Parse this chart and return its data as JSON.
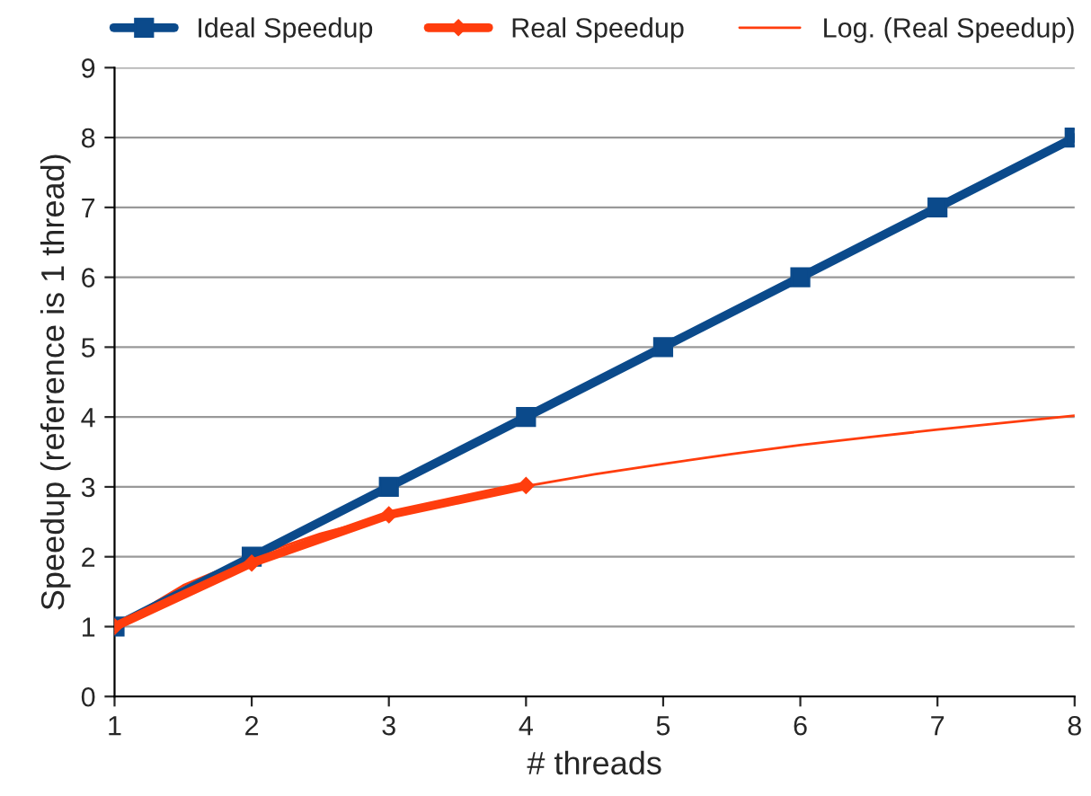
{
  "chart_data": {
    "type": "line",
    "xlabel": "# threads",
    "ylabel": "Speedup (reference is 1 thread)",
    "x": [
      1,
      2,
      3,
      4,
      5,
      6,
      7,
      8
    ],
    "series": [
      {
        "name": "Ideal Speedup",
        "color": "#0b4a8b",
        "values": [
          1,
          2,
          3,
          4,
          5,
          6,
          7,
          8
        ],
        "marker": "square"
      },
      {
        "name": "Real Speedup",
        "color": "#ff3d0d",
        "values": [
          1,
          1.91,
          2.6,
          3.02,
          null,
          null,
          null,
          null
        ],
        "marker": "diamond"
      },
      {
        "name": "Log. (Real Speedup)",
        "color": "#ff3d0d",
        "type": "line",
        "marker": "none",
        "x": [
          1,
          1.5,
          2,
          2.5,
          3,
          3.5,
          4,
          4.5,
          5,
          5.5,
          6,
          6.5,
          7,
          7.5,
          8
        ],
        "values": [
          1.0,
          1.59,
          2.0,
          2.33,
          2.59,
          2.82,
          3.01,
          3.18,
          3.33,
          3.47,
          3.6,
          3.71,
          3.82,
          3.92,
          4.02
        ]
      }
    ],
    "xlim": [
      1,
      8
    ],
    "xticks": [
      1,
      2,
      3,
      4,
      5,
      6,
      7,
      8
    ],
    "ylim": [
      0,
      9
    ],
    "yticks": [
      0,
      1,
      2,
      3,
      4,
      5,
      6,
      7,
      8,
      9
    ],
    "grid": "y",
    "legend": "top",
    "line_style": "solid"
  }
}
